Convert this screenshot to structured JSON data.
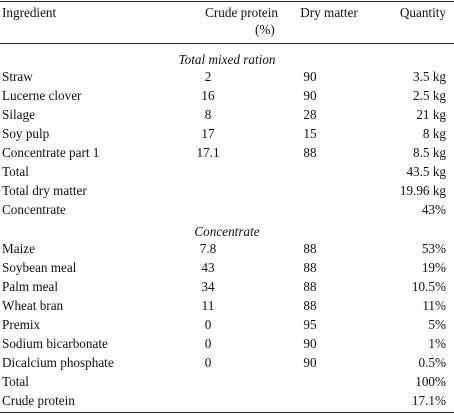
{
  "header": {
    "ingredient": "Ingredient",
    "crude_protein": "Crude protein",
    "crude_protein_unit": "(%)",
    "dry_matter": "Dry matter",
    "quantity": "Quantity"
  },
  "sections": {
    "tmr": "Total mixed ration",
    "concentrate": "Concentrate"
  },
  "tmr_rows": [
    {
      "name": "Straw",
      "cp": "2",
      "dm": "90",
      "qty": "3.5 kg"
    },
    {
      "name": "Lucerne clover",
      "cp": "16",
      "dm": "90",
      "qty": "2.5 kg"
    },
    {
      "name": "Silage",
      "cp": "8",
      "dm": "28",
      "qty": "21 kg"
    },
    {
      "name": "Soy pulp",
      "cp": "17",
      "dm": "15",
      "qty": "8 kg"
    },
    {
      "name": "Concentrate part 1",
      "cp": "17.1",
      "dm": "88",
      "qty": "8.5 kg"
    },
    {
      "name": "Total",
      "cp": "",
      "dm": "",
      "qty": "43.5 kg"
    },
    {
      "name": "Total dry matter",
      "cp": "",
      "dm": "",
      "qty": "19.96 kg"
    },
    {
      "name": "Concentrate",
      "cp": "",
      "dm": "",
      "qty": "43%"
    }
  ],
  "conc_rows": [
    {
      "name": "Maize",
      "cp": "7.8",
      "dm": "88",
      "qty": "53%"
    },
    {
      "name": "Soybean meal",
      "cp": "43",
      "dm": "88",
      "qty": "19%"
    },
    {
      "name": "Palm meal",
      "cp": "34",
      "dm": "88",
      "qty": "10.5%"
    },
    {
      "name": "Wheat bran",
      "cp": "11",
      "dm": "88",
      "qty": "11%"
    },
    {
      "name": "Premix",
      "cp": "0",
      "dm": "95",
      "qty": "5%"
    },
    {
      "name": "Sodium bicarbonate",
      "cp": "0",
      "dm": "90",
      "qty": "1%"
    },
    {
      "name": "Dicalcium phosphate",
      "cp": "0",
      "dm": "90",
      "qty": "0.5%"
    },
    {
      "name": "Total",
      "cp": "",
      "dm": "",
      "qty": "100%"
    },
    {
      "name": "Crude protein",
      "cp": "",
      "dm": "",
      "qty": "17.1%"
    }
  ]
}
